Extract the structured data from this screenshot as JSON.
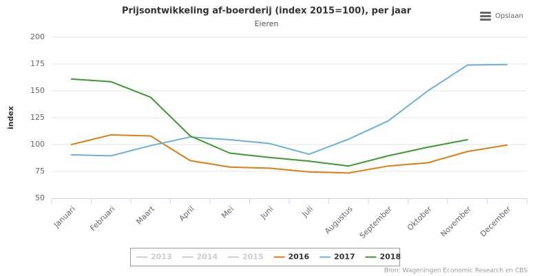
{
  "chart_data": {
    "type": "line",
    "title": "Prijsontwikkeling af-boerderij (index 2015=100), per jaar",
    "subtitle": "Eieren",
    "y_label": "index",
    "menu_label": "Opslaan",
    "credits": "Bron: Wageningen Economic Research en CBS",
    "categories": [
      "Januari",
      "Februari",
      "Maart",
      "April",
      "Mei",
      "Juni",
      "Juli",
      "Augustus",
      "September",
      "Oktober",
      "November",
      "December"
    ],
    "series": [
      {
        "name": "2013",
        "color": "#cccccc",
        "visible": false,
        "values": [
          null,
          null,
          null,
          null,
          null,
          null,
          null,
          null,
          null,
          null,
          null,
          null
        ]
      },
      {
        "name": "2014",
        "color": "#cccccc",
        "visible": false,
        "values": [
          null,
          null,
          null,
          null,
          null,
          null,
          null,
          null,
          null,
          null,
          null,
          null
        ]
      },
      {
        "name": "2015",
        "color": "#cccccc",
        "visible": false,
        "values": [
          null,
          null,
          null,
          null,
          null,
          null,
          null,
          null,
          null,
          null,
          null,
          null
        ]
      },
      {
        "name": "2016",
        "color": "#e07b12",
        "visible": true,
        "values": [
          100,
          109,
          108,
          85,
          79,
          78,
          74.5,
          73.5,
          80,
          83,
          93.5,
          99.5
        ]
      },
      {
        "name": "2017",
        "color": "#6cb0d8",
        "visible": true,
        "values": [
          90.5,
          89.5,
          99,
          107,
          104.5,
          101,
          91,
          105,
          122,
          150,
          174,
          174.5
        ]
      },
      {
        "name": "2018",
        "color": "#3a982c",
        "visible": true,
        "values": [
          161,
          158.5,
          144,
          108,
          92,
          88,
          84.5,
          80,
          89.5,
          97.5,
          104.5,
          null
        ]
      }
    ],
    "ylim": [
      50,
      200
    ],
    "yticks": [
      50,
      75,
      100,
      125,
      150,
      175,
      200
    ],
    "grid": true
  }
}
